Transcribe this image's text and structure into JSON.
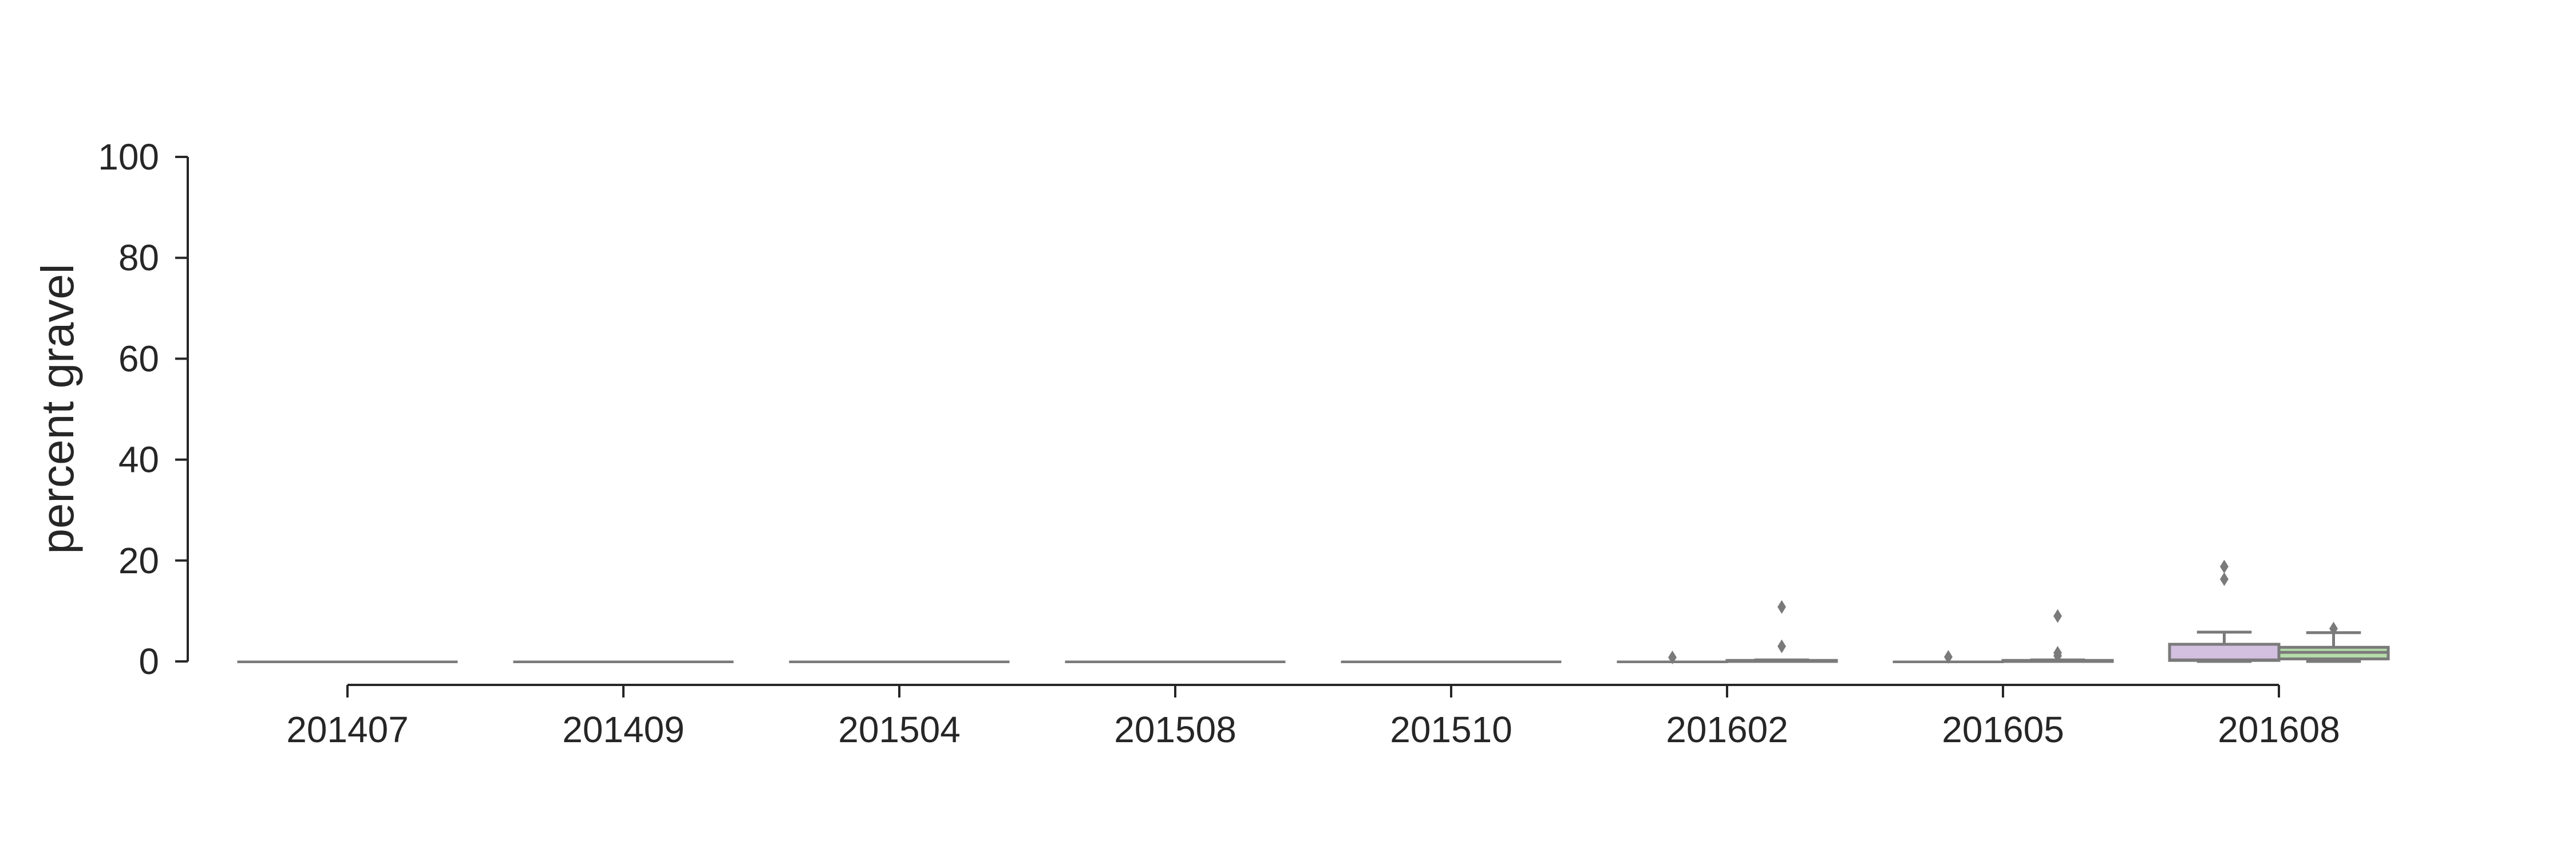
{
  "chart_data": {
    "type": "box",
    "ylabel": "percent gravel",
    "xlabel": "",
    "ylim": [
      0,
      100
    ],
    "yticks": [
      0,
      20,
      40,
      60,
      80,
      100
    ],
    "categories": [
      "201407",
      "201409",
      "201504",
      "201508",
      "201510",
      "201602",
      "201605",
      "201608"
    ],
    "grid": false,
    "legend": "none",
    "colors": {
      "series_a": "#d3bfe0",
      "series_b": "#b5dcaa",
      "box_edge": "#7a7a7a",
      "axis": "#262626"
    },
    "series": [
      {
        "boxes": [
          {
            "q1": 0,
            "median": 0,
            "q3": 0,
            "whisker_low": 0,
            "whisker_high": 0,
            "fliers": []
          },
          {
            "q1": 0,
            "median": 0,
            "q3": 0,
            "whisker_low": 0,
            "whisker_high": 0,
            "fliers": []
          },
          {
            "q1": 0,
            "median": 0,
            "q3": 0,
            "whisker_low": 0,
            "whisker_high": 0,
            "fliers": []
          },
          {
            "q1": 0,
            "median": 0,
            "q3": 0,
            "whisker_low": 0,
            "whisker_high": 0,
            "fliers": []
          },
          {
            "q1": 0,
            "median": 0,
            "q3": 0,
            "whisker_low": 0,
            "whisker_high": 0,
            "fliers": []
          },
          {
            "q1": 0,
            "median": 0,
            "q3": 0,
            "whisker_low": 0,
            "whisker_high": 0,
            "fliers": [
              0.8
            ]
          },
          {
            "q1": 0,
            "median": 0,
            "q3": 0,
            "whisker_low": 0,
            "whisker_high": 0,
            "fliers": [
              0.9
            ]
          },
          {
            "q1": 0.2,
            "median": 0.3,
            "q3": 3.4,
            "whisker_low": 0,
            "whisker_high": 5.8,
            "fliers": [
              16.3,
              18.8
            ]
          }
        ]
      },
      {
        "boxes": [
          {
            "q1": 0,
            "median": 0,
            "q3": 0,
            "whisker_low": 0,
            "whisker_high": 0,
            "fliers": []
          },
          {
            "q1": 0,
            "median": 0,
            "q3": 0,
            "whisker_low": 0,
            "whisker_high": 0,
            "fliers": []
          },
          {
            "q1": 0,
            "median": 0,
            "q3": 0,
            "whisker_low": 0,
            "whisker_high": 0,
            "fliers": []
          },
          {
            "q1": 0,
            "median": 0,
            "q3": 0,
            "whisker_low": 0,
            "whisker_high": 0,
            "fliers": []
          },
          {
            "q1": 0,
            "median": 0,
            "q3": 0,
            "whisker_low": 0,
            "whisker_high": 0,
            "fliers": []
          },
          {
            "q1": 0,
            "median": 0,
            "q3": 0.2,
            "whisker_low": 0,
            "whisker_high": 0.3,
            "fliers": [
              3.0,
              10.8
            ]
          },
          {
            "q1": 0,
            "median": 0,
            "q3": 0.2,
            "whisker_low": 0,
            "whisker_high": 0.3,
            "fliers": [
              1.1,
              1.7,
              9.0
            ]
          },
          {
            "q1": 0.5,
            "median": 1.8,
            "q3": 2.8,
            "whisker_low": 0,
            "whisker_high": 5.7,
            "fliers": [
              6.5
            ]
          }
        ]
      }
    ]
  }
}
